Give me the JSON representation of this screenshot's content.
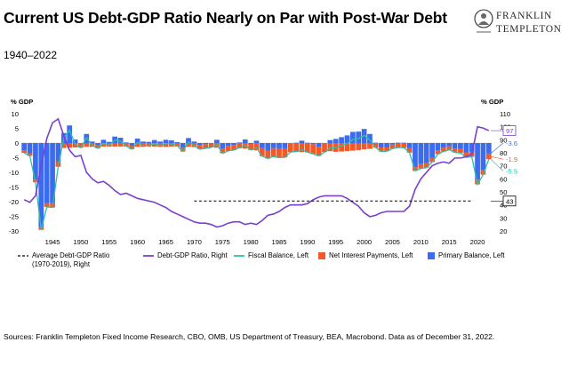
{
  "header": {
    "title": "Current US Debt-GDP Ratio Nearly on Par with Post-War Debt",
    "subtitle": "1940–2022"
  },
  "logo": {
    "line1": "FRANKLIN",
    "line2": "TEMPLETON"
  },
  "footer": {
    "source": "Sources: Franklin Templeton Fixed Income Research, CBO, OMB, US Department of Treasury, BEA,  Macrobond. Data as of December 31, 2022."
  },
  "colors": {
    "primary": "#3b6cf0",
    "interest": "#f05a28",
    "fiscal": "#2fbfa7",
    "debt": "#7a3fd0",
    "average": "#000000"
  },
  "chart_data": {
    "type": "bar",
    "title": "Current US Debt-GDP Ratio Nearly on Par with Post-War Debt",
    "left_axis": {
      "label": "% GDP",
      "ylim": [
        -30,
        10
      ],
      "ticks": [
        10,
        5,
        0,
        -5,
        -10,
        -15,
        -20,
        -25,
        -30
      ]
    },
    "right_axis": {
      "label": "% GDP",
      "ylim": [
        20,
        110
      ],
      "ticks": [
        110,
        100,
        90,
        80,
        70,
        60,
        50,
        40,
        30,
        20
      ]
    },
    "x_ticks": [
      1945,
      1950,
      1955,
      1960,
      1965,
      1970,
      1975,
      1980,
      1985,
      1990,
      1995,
      2000,
      2005,
      2010,
      2015,
      2020
    ],
    "years": [
      1940,
      1941,
      1942,
      1943,
      1944,
      1945,
      1946,
      1947,
      1948,
      1949,
      1950,
      1951,
      1952,
      1953,
      1954,
      1955,
      1956,
      1957,
      1958,
      1959,
      1960,
      1961,
      1962,
      1963,
      1964,
      1965,
      1966,
      1967,
      1968,
      1969,
      1970,
      1971,
      1972,
      1973,
      1974,
      1975,
      1976,
      1977,
      1978,
      1979,
      1980,
      1981,
      1982,
      1983,
      1984,
      1985,
      1986,
      1987,
      1988,
      1989,
      1990,
      1991,
      1992,
      1993,
      1994,
      1995,
      1996,
      1997,
      1998,
      1999,
      2000,
      2001,
      2002,
      2003,
      2004,
      2005,
      2006,
      2007,
      2008,
      2009,
      2010,
      2011,
      2012,
      2013,
      2014,
      2015,
      2016,
      2017,
      2018,
      2019,
      2020,
      2021,
      2022
    ],
    "series": [
      {
        "name": "Primary Balance, Left",
        "axis": "left",
        "kind": "bar",
        "values": [
          -2.5,
          -3.5,
          -12.5,
          -28.5,
          -20.5,
          -20.5,
          -6.3,
          3.4,
          6.0,
          1.2,
          -0.2,
          3.1,
          0.5,
          -0.6,
          1.1,
          0.4,
          2.2,
          1.8,
          0.2,
          -0.9,
          1.5,
          0.5,
          0.4,
          1.0,
          0.5,
          1.1,
          0.9,
          0.3,
          -1.6,
          1.7,
          0.5,
          -0.7,
          -0.4,
          0.0,
          1.1,
          -1.9,
          -1.0,
          -0.7,
          0.2,
          1.2,
          -0.3,
          0.8,
          -1.7,
          -2.6,
          -1.7,
          -1.8,
          -1.8,
          -0.1,
          0.1,
          0.8,
          0.1,
          -0.4,
          -1.3,
          -0.2,
          1.0,
          1.4,
          2.0,
          2.6,
          3.8,
          3.9,
          4.8,
          3.1,
          0.1,
          -1.5,
          -1.5,
          -0.5,
          0.1,
          0.1,
          -1.7,
          -8.2,
          -7.2,
          -6.9,
          -5.1,
          -2.5,
          -1.6,
          -1.1,
          -1.9,
          -2.0,
          -3.3,
          -3.0,
          -12.5,
          -9.2,
          -3.6
        ]
      },
      {
        "name": "Net Interest Payments, Left",
        "axis": "left",
        "kind": "bar",
        "values": [
          -0.9,
          -0.9,
          -0.9,
          -1.1,
          -1.3,
          -1.5,
          -1.8,
          -1.7,
          -1.6,
          -1.5,
          -1.4,
          -1.3,
          -1.3,
          -1.2,
          -1.2,
          -1.2,
          -1.2,
          -1.2,
          -1.2,
          -1.2,
          -1.3,
          -1.3,
          -1.2,
          -1.2,
          -1.3,
          -1.3,
          -1.2,
          -1.2,
          -1.3,
          -1.3,
          -1.4,
          -1.4,
          -1.4,
          -1.5,
          -1.6,
          -1.6,
          -1.7,
          -1.7,
          -1.8,
          -1.9,
          -2.1,
          -2.5,
          -2.8,
          -2.7,
          -2.9,
          -3.2,
          -3.1,
          -3.0,
          -3.0,
          -3.1,
          -3.2,
          -3.3,
          -3.1,
          -2.9,
          -2.8,
          -3.0,
          -2.9,
          -2.8,
          -2.6,
          -2.4,
          -2.2,
          -2.0,
          -1.6,
          -1.4,
          -1.3,
          -1.4,
          -1.6,
          -1.7,
          -1.6,
          -1.3,
          -1.5,
          -1.5,
          -1.4,
          -1.3,
          -1.3,
          -1.2,
          -1.3,
          -1.4,
          -1.6,
          -1.7,
          -1.6,
          -1.6,
          -1.9
        ]
      },
      {
        "name": "Fiscal Balance, Left",
        "axis": "left",
        "kind": "line",
        "values": [
          -3.4,
          -4.4,
          -13.4,
          -29.6,
          -21.8,
          -22.0,
          -8.1,
          1.7,
          4.4,
          -0.3,
          -1.6,
          1.8,
          -0.8,
          -1.8,
          -0.1,
          -0.8,
          1.0,
          0.6,
          -1.0,
          -2.1,
          0.2,
          -0.8,
          -0.8,
          -0.2,
          -0.8,
          -0.2,
          -0.3,
          -0.9,
          -2.9,
          0.4,
          -0.9,
          -2.1,
          -1.8,
          -1.5,
          -0.5,
          -3.5,
          -2.7,
          -2.4,
          -1.6,
          -0.7,
          -2.4,
          -1.7,
          -4.5,
          -5.3,
          -4.6,
          -5.0,
          -4.9,
          -3.1,
          -2.9,
          -2.3,
          -3.1,
          -3.7,
          -4.4,
          -3.1,
          -1.8,
          -1.6,
          -0.9,
          -0.2,
          1.2,
          1.5,
          2.6,
          1.1,
          -1.5,
          -2.9,
          -2.8,
          -1.9,
          -1.5,
          -1.6,
          -3.3,
          -9.5,
          -8.7,
          -8.4,
          -6.5,
          -3.8,
          -2.9,
          -2.3,
          -3.2,
          -3.4,
          -4.9,
          -4.7,
          -14.1,
          -10.8,
          -5.5
        ]
      },
      {
        "name": "Debt-GDP Ratio, Right",
        "axis": "right",
        "kind": "line",
        "values": [
          44,
          42,
          47,
          70,
          91,
          103,
          106,
          93,
          82,
          77,
          78,
          65,
          60,
          57,
          58,
          55,
          51,
          48,
          49,
          47,
          45,
          44,
          43,
          42,
          40,
          38,
          35,
          33,
          31,
          29,
          27,
          26,
          26,
          25,
          23,
          24,
          26,
          27,
          27,
          25,
          26,
          25,
          28,
          32,
          33,
          35,
          38,
          40,
          40,
          40,
          41,
          44,
          46,
          47,
          47,
          47,
          47,
          45,
          42,
          39,
          34,
          31,
          32,
          34,
          35,
          35,
          35,
          35,
          39,
          52,
          60,
          65,
          70,
          72,
          73,
          72,
          76,
          76,
          77,
          79,
          100,
          99,
          97
        ]
      },
      {
        "name": "Average Debt-GDP Ratio (1970-2019), Right",
        "axis": "right",
        "kind": "line",
        "x_range": [
          1970,
          2019
        ],
        "values": [
          43
        ]
      }
    ],
    "end_labels": {
      "debt": "97",
      "primary": "-3.6",
      "interest": "-1.9",
      "fiscal": "-5.5",
      "average": "43"
    },
    "legend": [
      {
        "key": "average",
        "label": "Average Debt-GDP Ratio\n(1970-2019), Right"
      },
      {
        "key": "debt",
        "label": "Debt-GDP Ratio, Right"
      },
      {
        "key": "fiscal",
        "label": "Fiscal Balance, Left"
      },
      {
        "key": "interest",
        "label": "Net Interest Payments, Left"
      },
      {
        "key": "primary",
        "label": "Primary Balance, Left"
      }
    ]
  }
}
